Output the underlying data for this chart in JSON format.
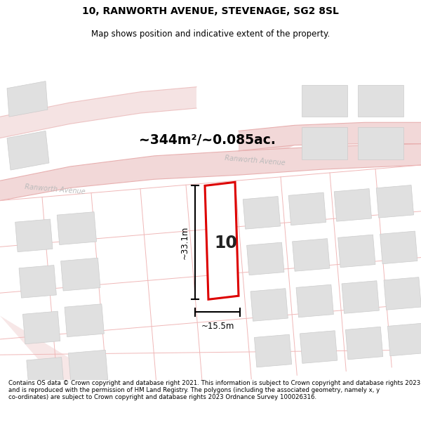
{
  "title_line1": "10, RANWORTH AVENUE, STEVENAGE, SG2 8SL",
  "title_line2": "Map shows position and indicative extent of the property.",
  "area_label": "~344m²/~0.085ac.",
  "house_number": "10",
  "width_label": "~15.5m",
  "height_label": "~33.1m",
  "footer_text": "Contains OS data © Crown copyright and database right 2021. This information is subject to Crown copyright and database rights 2023 and is reproduced with the permission of HM Land Registry. The polygons (including the associated geometry, namely x, y co-ordinates) are subject to Crown copyright and database rights 2023 Ordnance Survey 100026316.",
  "road_color": "#f2d8d8",
  "road_edge_color": "#e8b0b0",
  "building_color": "#e0e0e0",
  "building_edge_color": "#cccccc",
  "plot_line_color": "#f0b8b8",
  "highlight_color": "#dd0000",
  "street_label_color": "#bbbbbb",
  "text_color": "#000000",
  "bg_color": "#ffffff"
}
